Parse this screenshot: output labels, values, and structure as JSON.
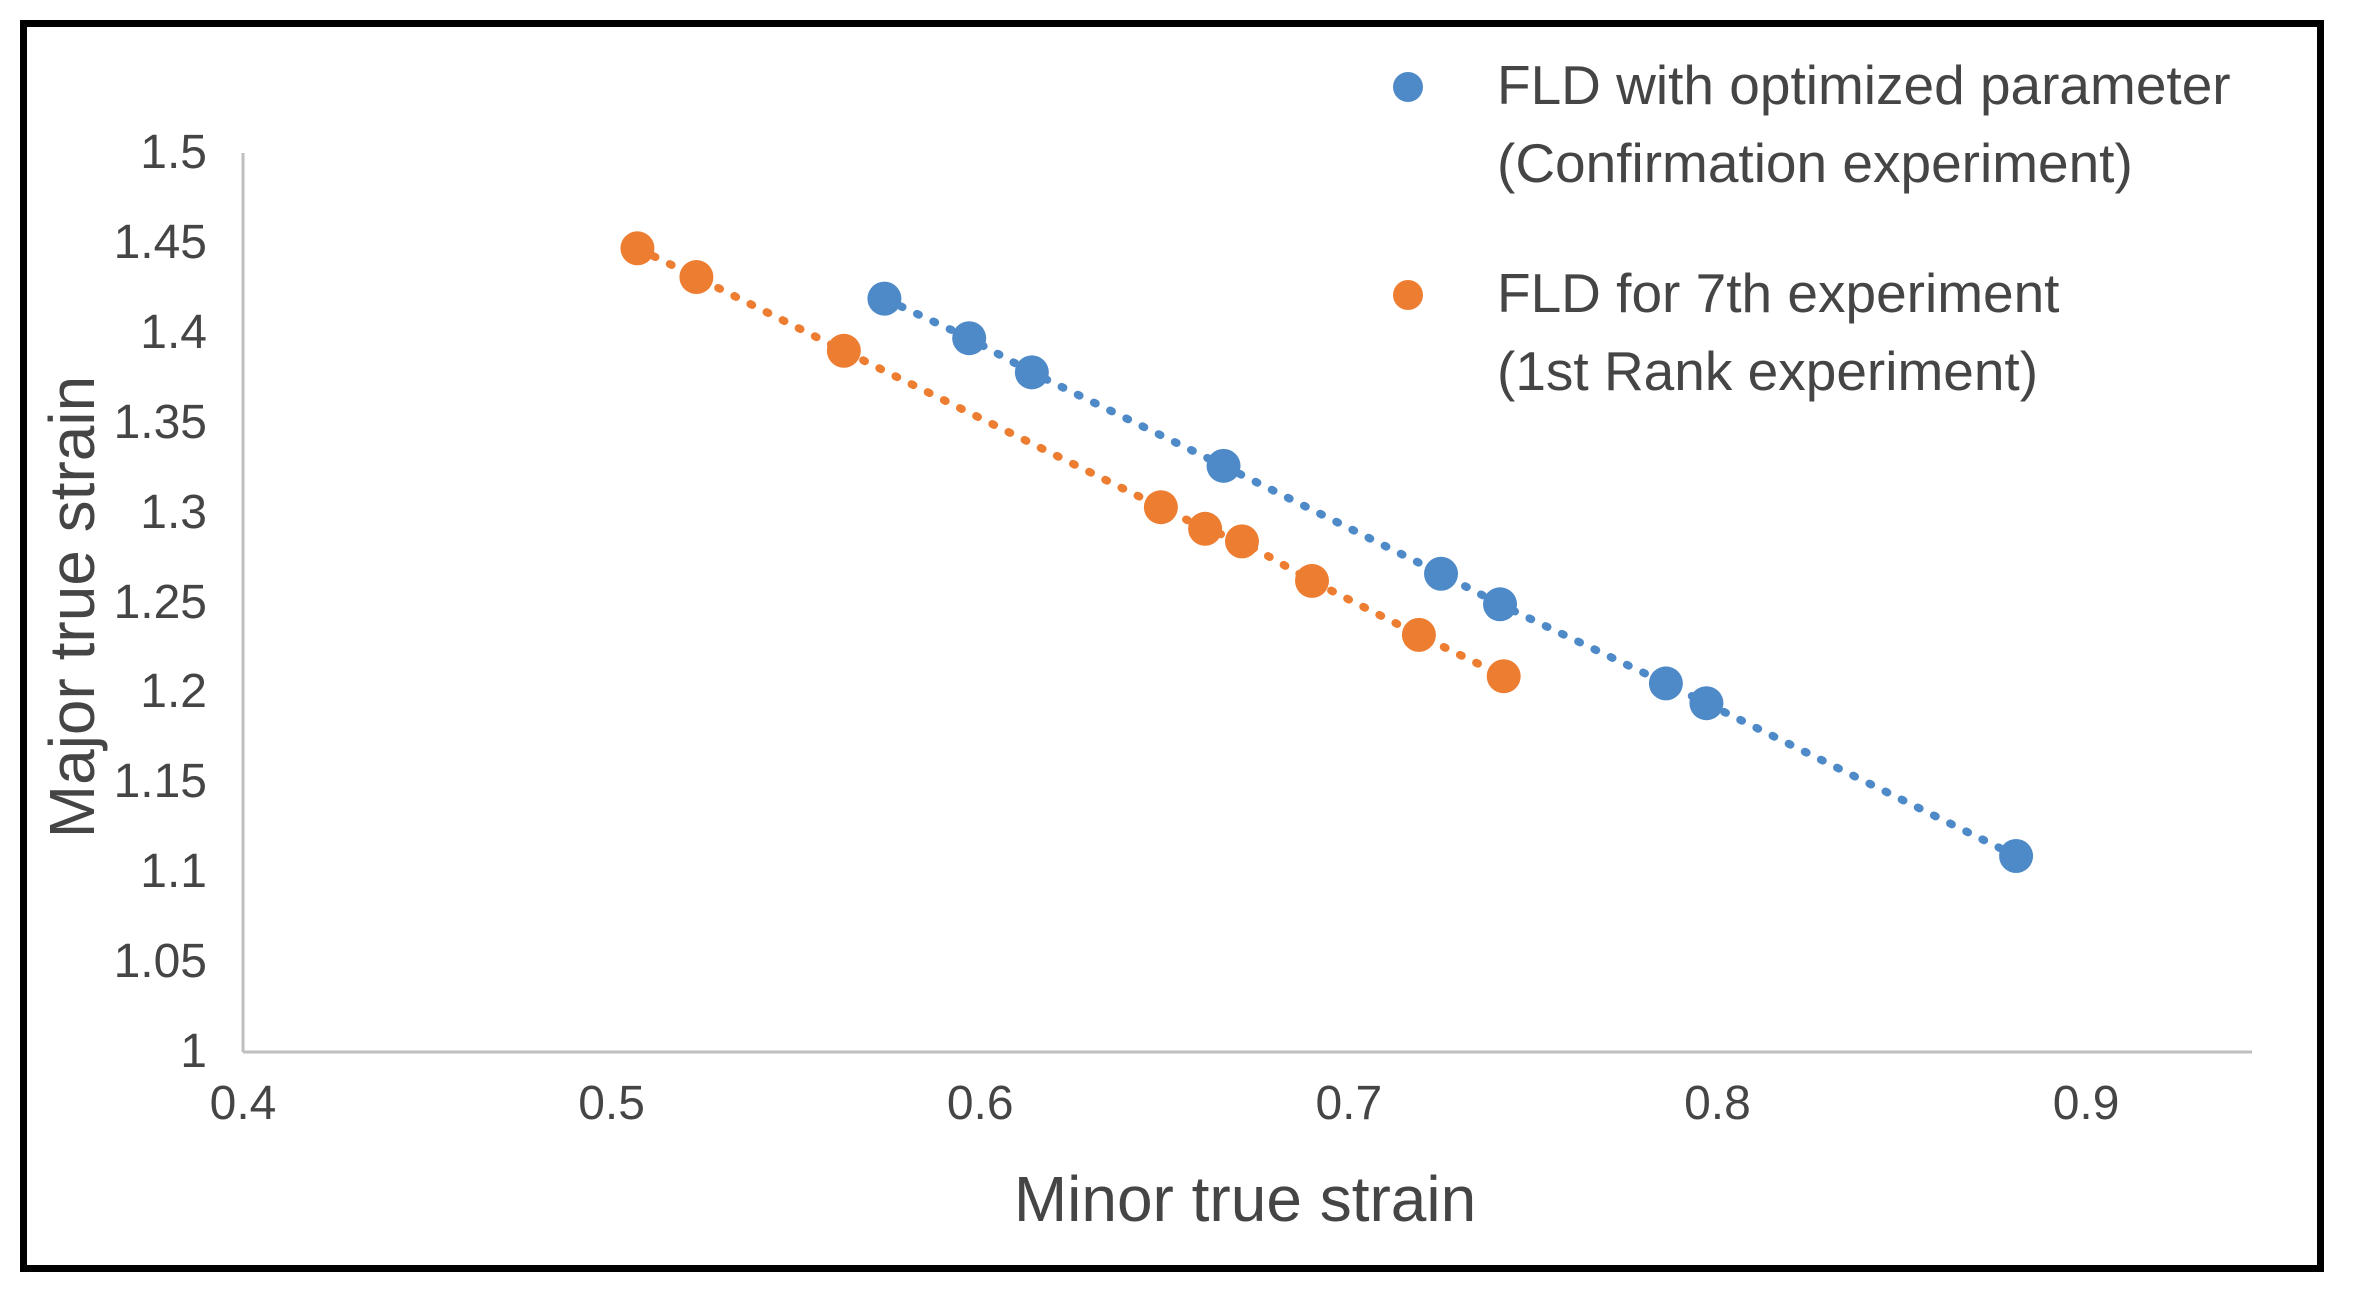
{
  "chart_data": {
    "type": "scatter",
    "title": "",
    "xlabel": "Minor true strain",
    "ylabel": "Major true strain",
    "xlim": [
      0.4,
      0.945
    ],
    "ylim": [
      1.0,
      1.5
    ],
    "grid": false,
    "legend_position": "top-right",
    "axis_color": "#BFBFBF",
    "text_color": "#454545",
    "x_ticks": [
      {
        "v": 0.4,
        "label": "0.4"
      },
      {
        "v": 0.5,
        "label": "0.5"
      },
      {
        "v": 0.6,
        "label": "0.6"
      },
      {
        "v": 0.7,
        "label": "0.7"
      },
      {
        "v": 0.8,
        "label": "0.8"
      },
      {
        "v": 0.9,
        "label": "0.9"
      }
    ],
    "y_ticks": [
      {
        "v": 1.0,
        "label": "1"
      },
      {
        "v": 1.05,
        "label": "1.05"
      },
      {
        "v": 1.1,
        "label": "1.1"
      },
      {
        "v": 1.15,
        "label": "1.15"
      },
      {
        "v": 1.2,
        "label": "1.2"
      },
      {
        "v": 1.25,
        "label": "1.25"
      },
      {
        "v": 1.3,
        "label": "1.3"
      },
      {
        "v": 1.35,
        "label": "1.35"
      },
      {
        "v": 1.4,
        "label": "1.4"
      },
      {
        "v": 1.45,
        "label": "1.45"
      },
      {
        "v": 1.5,
        "label": "1.5"
      }
    ],
    "series": [
      {
        "name": "FLD with optimized parameter (Confirmation experiment)",
        "legend_lines": [
          "FLD with optimized parameter",
          "(Confirmation experiment)"
        ],
        "color": "#4E8AC8",
        "marker": "circle",
        "line_style": "dotted",
        "points": [
          [
            0.574,
            1.419
          ],
          [
            0.597,
            1.397
          ],
          [
            0.614,
            1.378
          ],
          [
            0.666,
            1.326
          ],
          [
            0.725,
            1.266
          ],
          [
            0.741,
            1.249
          ],
          [
            0.786,
            1.205
          ],
          [
            0.797,
            1.194
          ],
          [
            0.881,
            1.109
          ]
        ]
      },
      {
        "name": "FLD for 7th experiment (1st Rank experiment)",
        "legend_lines": [
          "FLD for 7th experiment",
          "(1st Rank experiment)"
        ],
        "color": "#ED7D31",
        "marker": "circle",
        "line_style": "dotted",
        "points": [
          [
            0.507,
            1.447
          ],
          [
            0.523,
            1.431
          ],
          [
            0.563,
            1.39
          ],
          [
            0.649,
            1.303
          ],
          [
            0.661,
            1.291
          ],
          [
            0.671,
            1.284
          ],
          [
            0.69,
            1.262
          ],
          [
            0.719,
            1.232
          ],
          [
            0.742,
            1.209
          ]
        ]
      }
    ]
  }
}
